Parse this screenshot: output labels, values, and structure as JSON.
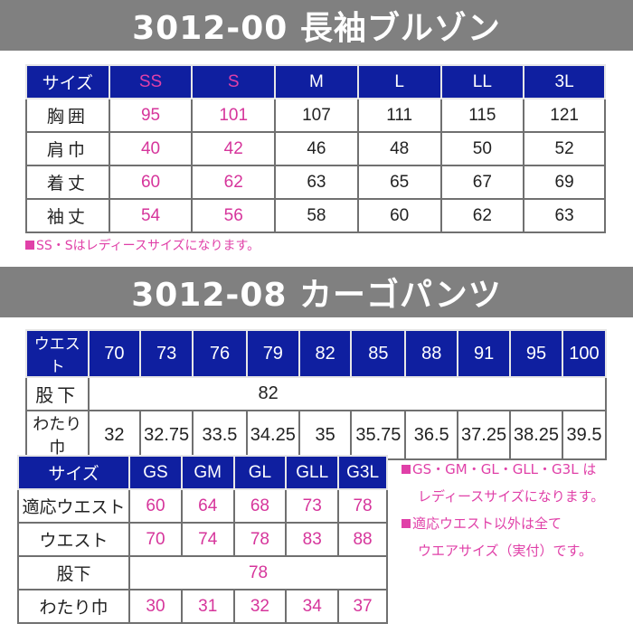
{
  "section1": {
    "title": "3012-00 長袖ブルゾン",
    "headers": [
      "サイズ",
      "SS",
      "S",
      "M",
      "L",
      "LL",
      "3L"
    ],
    "rows": [
      {
        "label": "胸囲",
        "values": [
          "95",
          "101",
          "107",
          "111",
          "115",
          "121"
        ]
      },
      {
        "label": "肩巾",
        "values": [
          "40",
          "42",
          "46",
          "48",
          "50",
          "52"
        ]
      },
      {
        "label": "着丈",
        "values": [
          "60",
          "62",
          "63",
          "65",
          "67",
          "69"
        ]
      },
      {
        "label": "袖丈",
        "values": [
          "54",
          "56",
          "58",
          "60",
          "62",
          "63"
        ]
      }
    ],
    "note": "SS・Sはレディースサイズになります。"
  },
  "section2": {
    "title": "3012-08 カーゴパンツ",
    "waist_table": {
      "header_label": "ウエスト",
      "headers": [
        "70",
        "73",
        "76",
        "79",
        "82",
        "85",
        "88",
        "91",
        "95",
        "100"
      ],
      "inseam_label": "股下",
      "inseam_value": "82",
      "thigh_label": "わたり巾",
      "thigh_values": [
        "32",
        "32.75",
        "33.5",
        "34.25",
        "35",
        "35.75",
        "36.5",
        "37.25",
        "38.25",
        "39.5"
      ]
    },
    "ladies_table": {
      "headers": [
        "サイズ",
        "GS",
        "GM",
        "GL",
        "GLL",
        "G3L"
      ],
      "rows": [
        {
          "label": "適応ウエスト",
          "values": [
            "60",
            "64",
            "68",
            "73",
            "78"
          ]
        },
        {
          "label": "ウエスト",
          "values": [
            "70",
            "74",
            "78",
            "83",
            "88"
          ]
        }
      ],
      "inseam_label": "股下",
      "inseam_value": "78",
      "thigh_label": "わたり巾",
      "thigh_values": [
        "30",
        "31",
        "32",
        "34",
        "37"
      ]
    },
    "notes": [
      {
        "line1": "GS・GM・GL・GLL・G3L は",
        "line2": "レディースサイズになります。"
      },
      {
        "line1": "適応ウエスト以外は全て",
        "line2": "ウエアサイズ（実付）です。"
      }
    ]
  },
  "colors": {
    "banner_bg": "#808080",
    "header_bg": "#0f1fa0",
    "pink": "#d6359b",
    "border": "#707070"
  }
}
